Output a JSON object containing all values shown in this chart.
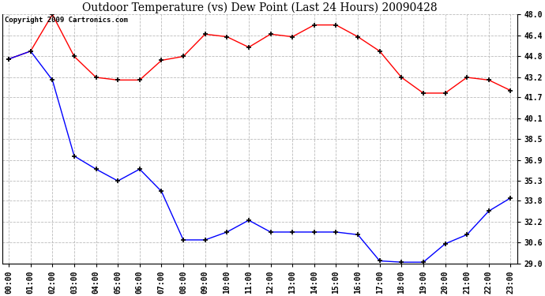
{
  "title": "Outdoor Temperature (vs) Dew Point (Last 24 Hours) 20090428",
  "copyright": "Copyright 2009 Cartronics.com",
  "x_labels": [
    "00:00",
    "01:00",
    "02:00",
    "03:00",
    "04:00",
    "05:00",
    "06:00",
    "07:00",
    "08:00",
    "09:00",
    "10:00",
    "11:00",
    "12:00",
    "13:00",
    "14:00",
    "15:00",
    "16:00",
    "17:00",
    "18:00",
    "19:00",
    "20:00",
    "21:00",
    "22:00",
    "23:00"
  ],
  "temp_data": [
    44.6,
    45.2,
    43.0,
    37.2,
    36.2,
    35.3,
    36.2,
    34.5,
    30.8,
    30.8,
    31.4,
    32.3,
    31.4,
    31.4,
    31.4,
    31.4,
    31.2,
    29.2,
    29.1,
    29.1,
    30.5,
    31.2,
    33.0,
    34.0
  ],
  "dew_data": [
    44.6,
    45.2,
    48.0,
    44.8,
    43.2,
    43.0,
    43.0,
    44.5,
    44.8,
    46.5,
    46.3,
    45.5,
    46.5,
    46.3,
    47.2,
    47.2,
    46.3,
    45.2,
    43.2,
    42.0,
    42.0,
    43.2,
    43.0,
    42.2
  ],
  "ylim_min": 29.0,
  "ylim_max": 48.0,
  "yticks": [
    29.0,
    30.6,
    32.2,
    33.8,
    35.3,
    36.9,
    38.5,
    40.1,
    41.7,
    43.2,
    44.8,
    46.4,
    48.0
  ],
  "temp_color": "#0000ff",
  "dew_color": "#ff0000",
  "bg_color": "#ffffff",
  "grid_color": "#bbbbbb",
  "title_fontsize": 10,
  "axis_label_fontsize": 7,
  "copyright_fontsize": 6.5
}
